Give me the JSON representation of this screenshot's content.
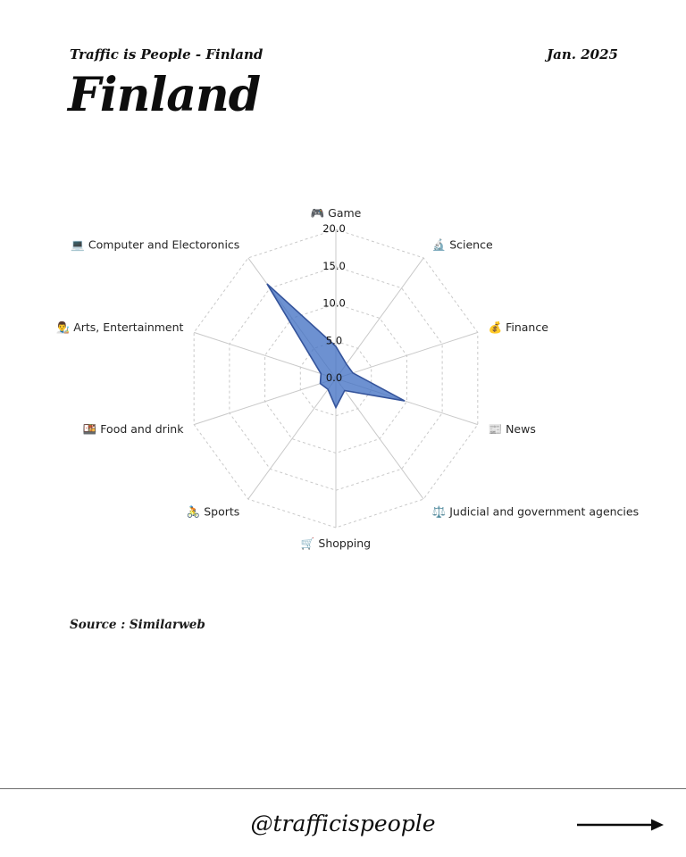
{
  "header": {
    "brand": "Traffic is People - Finland",
    "date": "Jan. 2025"
  },
  "title": "Finland",
  "source": "Source : Similarweb",
  "footer": {
    "handle": "@trafficispeople",
    "arrow_icon": "right-arrow"
  },
  "chart_data": {
    "type": "radar",
    "title": "",
    "categories": [
      {
        "icon": "🎮",
        "label": "Game"
      },
      {
        "icon": "🔬",
        "label": "Science"
      },
      {
        "icon": "💰",
        "label": "Finance"
      },
      {
        "icon": "📰",
        "label": "News"
      },
      {
        "icon": "⚖️",
        "label": "Judicial and government agencies"
      },
      {
        "icon": "🛒",
        "label": "Shopping"
      },
      {
        "icon": "🚴",
        "label": "Sports"
      },
      {
        "icon": "🍱",
        "label": "Food and drink"
      },
      {
        "icon": "👨‍🎨",
        "label": "Arts, Entertainment"
      },
      {
        "icon": "💻",
        "label": "Computer and Electoronics"
      }
    ],
    "values": [
      4.3,
      2.4,
      2.4,
      9.7,
      2.0,
      3.9,
      1.8,
      2.2,
      2.1,
      15.7
    ],
    "ticks": [
      0,
      5,
      10,
      15,
      20
    ],
    "tick_labels": [
      "0.0",
      "5.0",
      "10.0",
      "15.0",
      "20.0"
    ],
    "axis_range": [
      0,
      20
    ],
    "legend": "none",
    "grid": {
      "rings": "dashed",
      "radial_lines": "solid"
    },
    "colors": {
      "grid": "#c9c9c9",
      "series_fill": "#4472c4",
      "series_fill_opacity": 0.78,
      "series_stroke": "#35549b",
      "tick_label": "#111111",
      "category_label": "#262626"
    }
  }
}
